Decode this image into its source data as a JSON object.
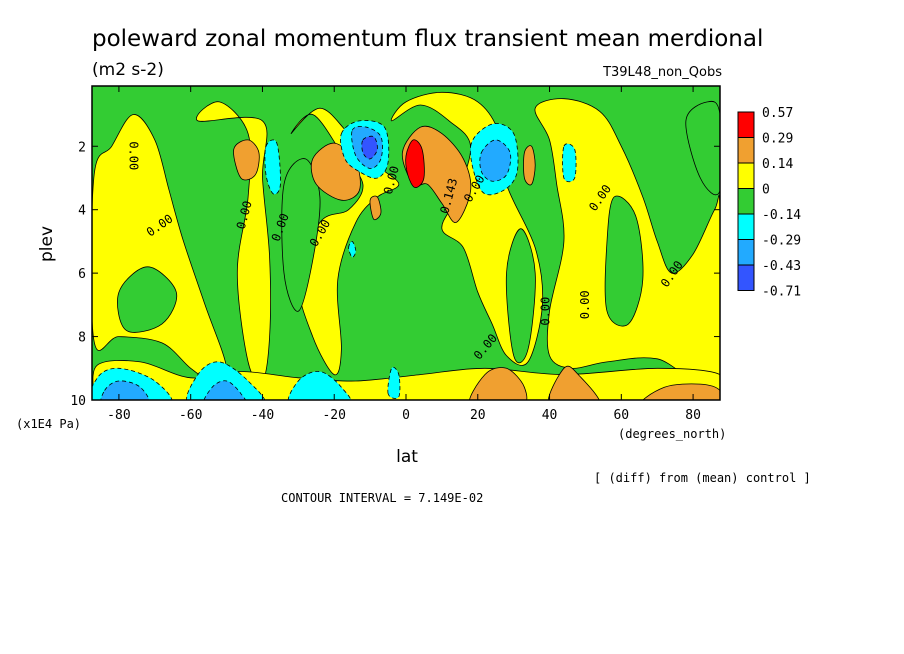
{
  "chart_data": {
    "type": "contour",
    "title": "poleward zonal momentum flux transient mean merdional",
    "units": "(m2 s-2)",
    "run_label": "T39L48_non_Qobs",
    "xlabel": "lat",
    "x_units": "(degrees_north)",
    "ylabel": "plev",
    "y_units": "(x1E4 Pa)",
    "x_ticks": [
      "-80",
      "-60",
      "-40",
      "-20",
      "0",
      "20",
      "40",
      "60",
      "80"
    ],
    "x_tick_values": [
      -80,
      -60,
      -40,
      -20,
      0,
      20,
      40,
      60,
      80
    ],
    "y_ticks": [
      "2",
      "4",
      "6",
      "8",
      "10"
    ],
    "y_tick_values": [
      2,
      4,
      6,
      8,
      10
    ],
    "xlim": [
      -87.5,
      87.5
    ],
    "ylim": [
      10,
      0.1
    ],
    "colorbar": {
      "labels": [
        "0.57",
        "0.29",
        "0.14",
        "0",
        "-0.14",
        "-0.29",
        "-0.43",
        "-0.71"
      ],
      "colors": [
        "#ff0000",
        "#f0a030",
        "#ffff00",
        "#33cc33",
        "#00ffff",
        "#22aaff",
        "#3355ff"
      ]
    },
    "contour_labels": [
      {
        "text": "0.00",
        "lat": -77,
        "plev": 2.3,
        "rotate": 90
      },
      {
        "text": "0.00",
        "lat": -68,
        "plev": 4.6,
        "rotate": -35
      },
      {
        "text": "0.00",
        "lat": -44,
        "plev": 4.2,
        "rotate": -75
      },
      {
        "text": "0.00",
        "lat": -34,
        "plev": 4.6,
        "rotate": -70
      },
      {
        "text": "0.00",
        "lat": -23,
        "plev": 4.8,
        "rotate": -60
      },
      {
        "text": "0.00",
        "lat": -3,
        "plev": 3.1,
        "rotate": -75
      },
      {
        "text": "0.143",
        "lat": 13,
        "plev": 3.6,
        "rotate": -75
      },
      {
        "text": "0.00",
        "lat": 20,
        "plev": 3.4,
        "rotate": -60
      },
      {
        "text": "0.00",
        "lat": 55,
        "plev": 3.7,
        "rotate": -55
      },
      {
        "text": "0.00",
        "lat": 40,
        "plev": 7.2,
        "rotate": -90
      },
      {
        "text": "0.00",
        "lat": 51,
        "plev": 7.0,
        "rotate": -90
      },
      {
        "text": "0.00",
        "lat": 75,
        "plev": 6.1,
        "rotate": -55
      },
      {
        "text": "0.00",
        "lat": 23,
        "plev": 8.4,
        "rotate": -50
      }
    ],
    "diff_note": "[ (diff) from (mean) control ]",
    "contour_interval": "CONTOUR INTERVAL = 7.149E-02"
  }
}
